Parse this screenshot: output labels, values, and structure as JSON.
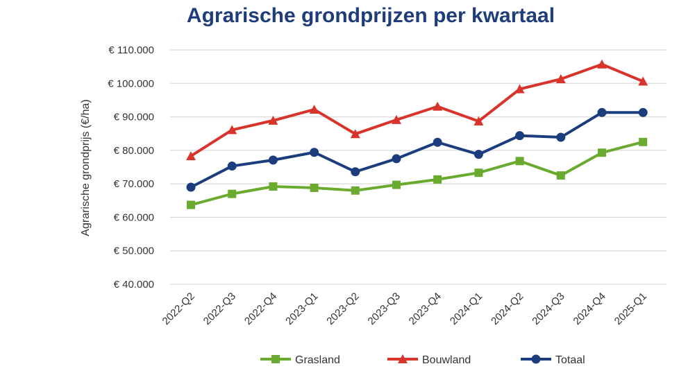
{
  "chart_data": {
    "type": "line",
    "title": "Agrarische grondprijzen per kwartaal",
    "xlabel": "",
    "ylabel": "Agrarische grondprijs (€/ha)",
    "ylim": [
      40000,
      110000
    ],
    "yticks": [
      "€ 40.000",
      "€ 50.000",
      "€ 60.000",
      "€ 70.000",
      "€ 80.000",
      "€ 90.000",
      "€ 100.000",
      "€ 110.000"
    ],
    "categories": [
      "2022-Q2",
      "2022-Q3",
      "2022-Q4",
      "2023-Q1",
      "2023-Q2",
      "2023-Q3",
      "2023-Q4",
      "2024-Q1",
      "2024-Q2",
      "2024-Q3",
      "2024-Q4",
      "2025-Q1"
    ],
    "grid": "horizontal",
    "legend_position": "bottom",
    "series": [
      {
        "name": "Grasland",
        "color": "#6aaa2e",
        "marker": "square",
        "values": [
          63700,
          67000,
          69200,
          68800,
          68000,
          69700,
          71300,
          73300,
          76800,
          72500,
          79300,
          82500
        ]
      },
      {
        "name": "Bouwland",
        "color": "#d9342b",
        "marker": "triangle",
        "values": [
          78300,
          86100,
          88900,
          92200,
          84900,
          89100,
          93100,
          88700,
          98300,
          101300,
          105700,
          100600
        ]
      },
      {
        "name": "Totaal",
        "color": "#1b3d7e",
        "marker": "circle",
        "values": [
          69000,
          75300,
          77100,
          79400,
          73600,
          77500,
          82400,
          78800,
          84400,
          83900,
          91300,
          91300
        ]
      }
    ]
  }
}
